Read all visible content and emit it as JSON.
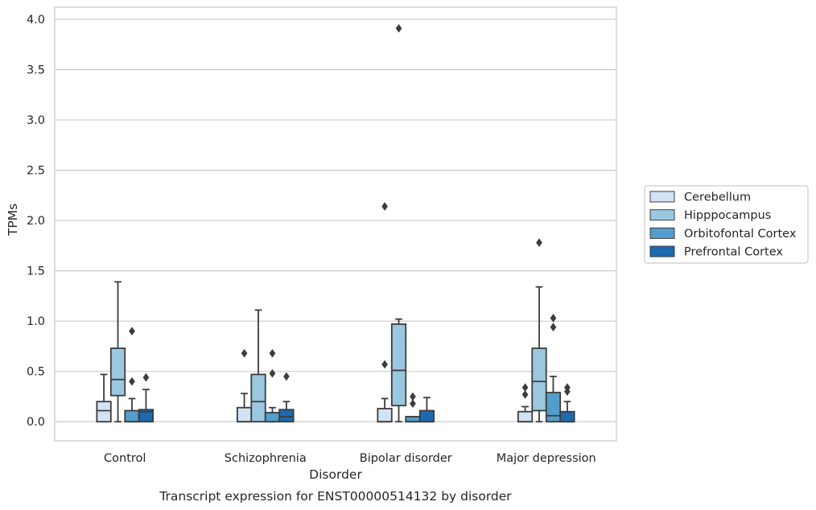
{
  "chart_data": {
    "type": "boxplot",
    "xlabel": "Disorder",
    "ylabel": "TPMs",
    "caption": "Transcript expression for ENST00000514132 by disorder",
    "categories": [
      "Control",
      "Schizophrenia",
      "Bipolar disorder",
      "Major depression"
    ],
    "ylim": [
      -0.19,
      4.12
    ],
    "yticks": [
      "0.0",
      "0.5",
      "1.0",
      "1.5",
      "2.0",
      "2.5",
      "3.0",
      "3.5",
      "4.0"
    ],
    "grid": true,
    "legend_position": "right",
    "series": [
      {
        "name": "Cerebellum",
        "color": "#d2e3f3",
        "boxes": [
          {
            "whislo": 0.0,
            "q1": 0.0,
            "med": 0.11,
            "q3": 0.2,
            "whishi": 0.47,
            "fliers": []
          },
          {
            "whislo": 0.0,
            "q1": 0.0,
            "med": 0.0,
            "q3": 0.14,
            "whishi": 0.28,
            "fliers": [
              0.68
            ]
          },
          {
            "whislo": 0.0,
            "q1": 0.0,
            "med": 0.0,
            "q3": 0.13,
            "whishi": 0.23,
            "fliers": [
              0.57,
              2.14
            ]
          },
          {
            "whislo": 0.0,
            "q1": 0.0,
            "med": 0.0,
            "q3": 0.1,
            "whishi": 0.15,
            "fliers": [
              0.27,
              0.34
            ]
          }
        ]
      },
      {
        "name": "Hipppocampus",
        "color": "#9ac8e0",
        "boxes": [
          {
            "whislo": 0.0,
            "q1": 0.26,
            "med": 0.42,
            "q3": 0.73,
            "whishi": 1.39,
            "fliers": []
          },
          {
            "whislo": 0.0,
            "q1": 0.0,
            "med": 0.2,
            "q3": 0.47,
            "whishi": 1.11,
            "fliers": []
          },
          {
            "whislo": 0.0,
            "q1": 0.16,
            "med": 0.51,
            "q3": 0.97,
            "whishi": 1.02,
            "fliers": [
              3.91
            ]
          },
          {
            "whislo": 0.0,
            "q1": 0.11,
            "med": 0.4,
            "q3": 0.73,
            "whishi": 1.34,
            "fliers": [
              1.78
            ]
          }
        ]
      },
      {
        "name": "Orbitofontal Cortex",
        "color": "#529dcc",
        "boxes": [
          {
            "whislo": 0.0,
            "q1": 0.0,
            "med": 0.0,
            "q3": 0.11,
            "whishi": 0.23,
            "fliers": [
              0.4,
              0.9
            ]
          },
          {
            "whislo": 0.0,
            "q1": 0.0,
            "med": 0.0,
            "q3": 0.09,
            "whishi": 0.14,
            "fliers": [
              0.48,
              0.68
            ]
          },
          {
            "whislo": 0.0,
            "q1": 0.0,
            "med": 0.0,
            "q3": 0.05,
            "whishi": 0.05,
            "fliers": [
              0.18,
              0.25
            ]
          },
          {
            "whislo": 0.0,
            "q1": 0.0,
            "med": 0.06,
            "q3": 0.29,
            "whishi": 0.45,
            "fliers": [
              0.94,
              1.03
            ]
          }
        ]
      },
      {
        "name": "Prefrontal Cortex",
        "color": "#1c6aaf",
        "boxes": [
          {
            "whislo": 0.0,
            "q1": 0.0,
            "med": 0.1,
            "q3": 0.12,
            "whishi": 0.32,
            "fliers": [
              0.44
            ]
          },
          {
            "whislo": 0.0,
            "q1": 0.0,
            "med": 0.05,
            "q3": 0.12,
            "whishi": 0.2,
            "fliers": [
              0.45
            ]
          },
          {
            "whislo": 0.0,
            "q1": 0.0,
            "med": 0.0,
            "q3": 0.11,
            "whishi": 0.24,
            "fliers": []
          },
          {
            "whislo": 0.0,
            "q1": 0.0,
            "med": 0.0,
            "q3": 0.1,
            "whishi": 0.2,
            "fliers": [
              0.3,
              0.34
            ]
          }
        ]
      }
    ]
  }
}
